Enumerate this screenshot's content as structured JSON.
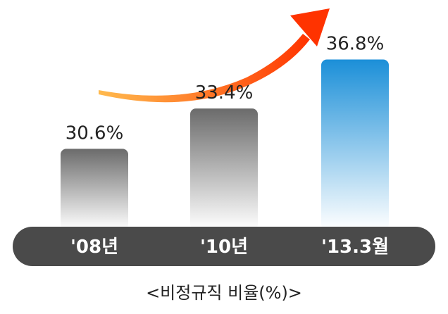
{
  "chart_data": {
    "type": "bar",
    "categories": [
      "'08년",
      "'10년",
      "'13.3월"
    ],
    "values": [
      30.6,
      33.4,
      36.8
    ],
    "value_labels": [
      "30.6%",
      "33.4%",
      "36.8%"
    ],
    "title": "<비정규직 비율(%)>",
    "xlabel": "",
    "ylabel": "",
    "ylim": [
      25,
      38
    ],
    "colors": {
      "gray_top": "#6b6b6b",
      "gray_bottom": "#ffffff",
      "blue_top": "#1b8fd8",
      "blue_bottom": "#ffffff",
      "axis_band": "#4a4a4a",
      "arrow_start": "#ffb23a",
      "arrow_end": "#ff3300"
    },
    "highlight_index": 2
  }
}
